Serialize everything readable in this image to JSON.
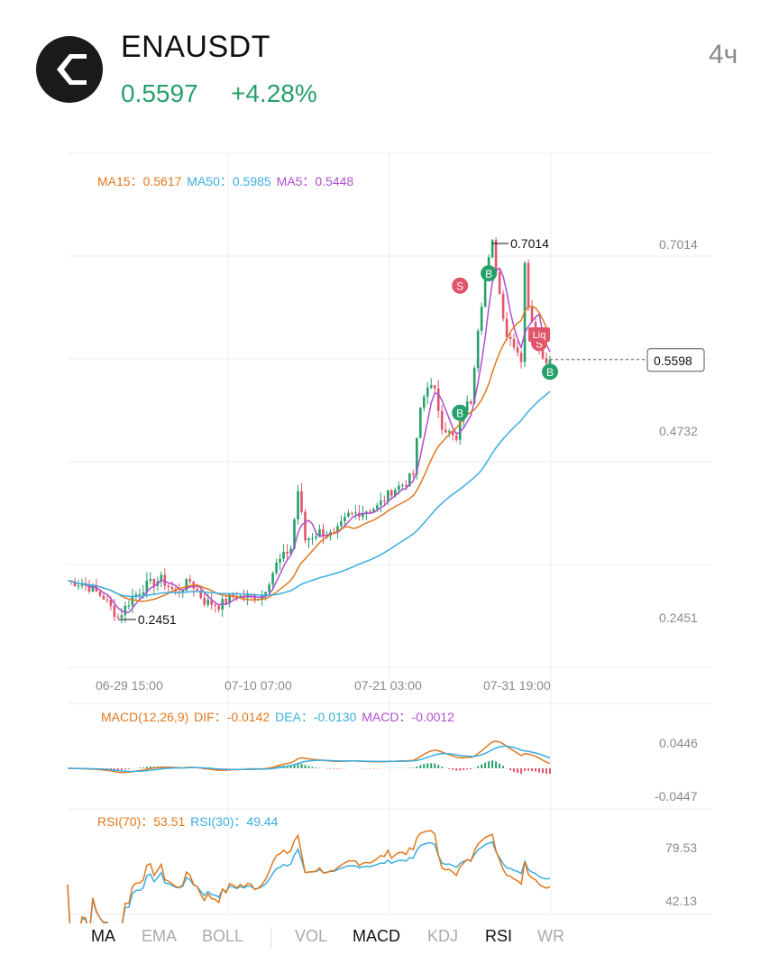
{
  "header": {
    "symbol": "ENAUSDT",
    "price": "0.5597",
    "change": "+4.28%",
    "timeframe": "4ч"
  },
  "colors": {
    "up": "#27a06b",
    "down": "#e0556a",
    "ma15": "#e0781e",
    "ma50": "#3aaee0",
    "ma5": "#b04fd0"
  },
  "legends": {
    "ma15": "MA15：0.5617",
    "ma50": "MA50：0.5985",
    "ma5": "MA5：0.5448",
    "macd_name": "MACD(12,26,9)",
    "dif": "DIF：-0.0142",
    "dea": "DEA：-0.0130",
    "macd": "MACD：-0.0012",
    "rsi70": "RSI(70)：53.51",
    "rsi30": "RSI(30)：49.44"
  },
  "markers": {
    "buy": "B",
    "sell": "S",
    "liq": "Liq",
    "high_label": "0.7014",
    "low_label": "0.2451",
    "current_price_tag": "0.5598"
  },
  "tabs": [
    {
      "label": "MA",
      "active": true
    },
    {
      "label": "EMA",
      "active": false
    },
    {
      "label": "BOLL",
      "active": false
    },
    {
      "label": "VOL",
      "active": false
    },
    {
      "label": "MACD",
      "active": true
    },
    {
      "label": "KDJ",
      "active": false
    },
    {
      "label": "RSI",
      "active": true
    },
    {
      "label": "WR",
      "active": false
    }
  ],
  "chart_data": [
    {
      "type": "candlestick",
      "title": "ENAUSDT",
      "ylim": [
        0.2451,
        0.7014
      ],
      "y_ticks": [
        "0.7014",
        "0.4732",
        "0.2451"
      ],
      "x_ticks": [
        "06-29 15:00",
        "07-10 07:00",
        "07-21 03:00",
        "07-31 19:00"
      ],
      "close_path": [
        [
          0,
          0.29
        ],
        [
          5,
          0.285
        ],
        [
          10,
          0.27
        ],
        [
          14,
          0.2451
        ],
        [
          18,
          0.27
        ],
        [
          22,
          0.285
        ],
        [
          26,
          0.292
        ],
        [
          30,
          0.275
        ],
        [
          34,
          0.29
        ],
        [
          38,
          0.265
        ],
        [
          42,
          0.26
        ],
        [
          46,
          0.272
        ],
        [
          50,
          0.27
        ],
        [
          54,
          0.272
        ],
        [
          58,
          0.31
        ],
        [
          62,
          0.33
        ],
        [
          64,
          0.4
        ],
        [
          66,
          0.34
        ],
        [
          70,
          0.35
        ],
        [
          74,
          0.345
        ],
        [
          78,
          0.37
        ],
        [
          82,
          0.375
        ],
        [
          86,
          0.38
        ],
        [
          90,
          0.4
        ],
        [
          94,
          0.41
        ],
        [
          96,
          0.42
        ],
        [
          98,
          0.5
        ],
        [
          100,
          0.53
        ],
        [
          102,
          0.52
        ],
        [
          104,
          0.48
        ],
        [
          106,
          0.47
        ],
        [
          108,
          0.46
        ],
        [
          110,
          0.5
        ],
        [
          112,
          0.51
        ],
        [
          114,
          0.6
        ],
        [
          116,
          0.66
        ],
        [
          118,
          0.7014
        ],
        [
          120,
          0.64
        ],
        [
          122,
          0.59
        ],
        [
          124,
          0.58
        ],
        [
          126,
          0.56
        ],
        [
          127,
          0.68
        ],
        [
          128,
          0.62
        ],
        [
          130,
          0.6
        ],
        [
          132,
          0.56
        ],
        [
          134,
          0.5598
        ]
      ],
      "series": [
        {
          "name": "MA15",
          "value": 0.5617
        },
        {
          "name": "MA50",
          "value": 0.5985
        },
        {
          "name": "MA5",
          "value": 0.5448
        }
      ],
      "last_price": 0.5598,
      "high": 0.7014,
      "low": 0.2451
    },
    {
      "type": "line",
      "title": "MACD(12,26,9)",
      "ylim": [
        -0.0447,
        0.0446
      ],
      "y_ticks": [
        "0.0446",
        "-0.0447"
      ],
      "series": [
        {
          "name": "DIF",
          "last": -0.0142
        },
        {
          "name": "DEA",
          "last": -0.013
        },
        {
          "name": "MACD",
          "last": -0.0012
        }
      ]
    },
    {
      "type": "line",
      "title": "RSI",
      "ylim": [
        42.13,
        79.53
      ],
      "y_ticks": [
        "79.53",
        "42.13"
      ],
      "series": [
        {
          "name": "RSI(70)",
          "last": 53.51
        },
        {
          "name": "RSI(30)",
          "last": 49.44
        }
      ]
    }
  ]
}
